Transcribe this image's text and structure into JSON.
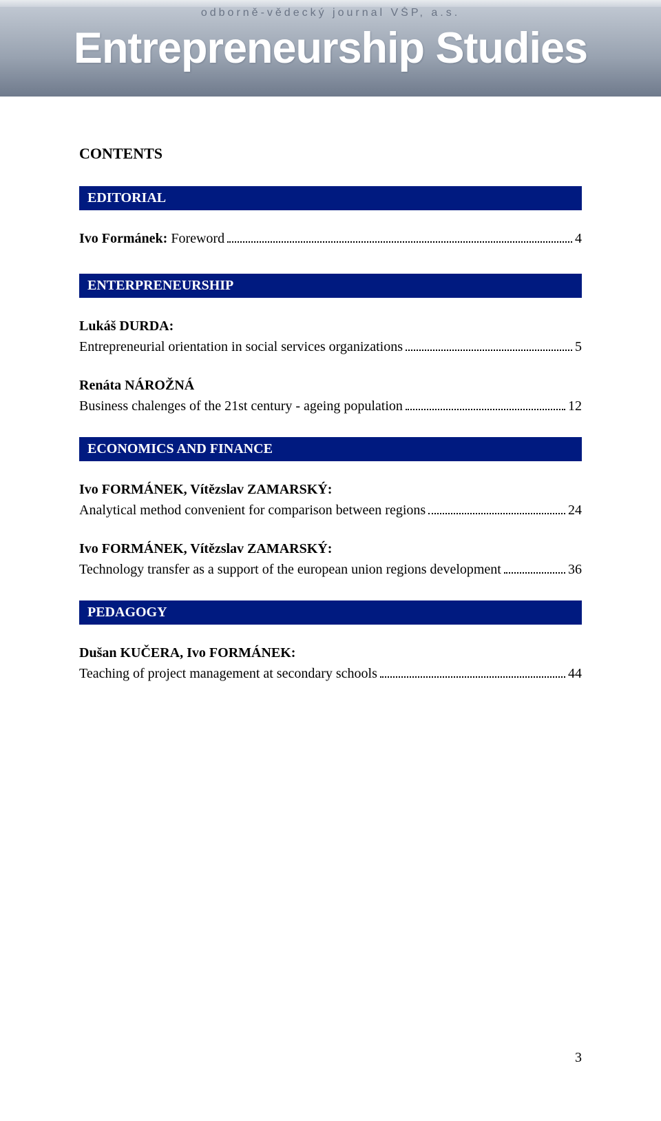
{
  "banner": {
    "subtitle": "odborně-vědecký journal VŠP, a.s.",
    "title": "Entrepreneurship Studies",
    "bg_gradient_top": "#c5ccd6",
    "bg_gradient_mid": "#98a2b0",
    "bg_gradient_bottom": "#6f7a8c",
    "subtitle_color": "#6a7485",
    "title_color": "#ffffff"
  },
  "contents_heading": "CONTENTS",
  "section_bar_bg": "#001a80",
  "section_bar_fg": "#ffffff",
  "sections": [
    {
      "heading": "EDITORIAL",
      "entries": [
        {
          "author": "Ivo Formánek:",
          "title": "Foreword",
          "page": "4",
          "inline": true
        }
      ]
    },
    {
      "heading": "ENTERPRENEURSHIP",
      "entries": [
        {
          "author": "Lukáš DURDA:",
          "title": "Entrepreneurial orientation in social services organizations",
          "page": "5"
        },
        {
          "author": "Renáta NÁROŽNÁ",
          "title": "Business chalenges of the 21st century - ageing population",
          "page": "12"
        }
      ]
    },
    {
      "heading": "ECONOMICS AND FINANCE",
      "entries": [
        {
          "author": "Ivo FORMÁNEK, Vítězslav ZAMARSKÝ:",
          "title": "Analytical method convenient for comparison between regions",
          "page": "24"
        },
        {
          "author": "Ivo FORMÁNEK, Vítězslav ZAMARSKÝ:",
          "title": "Technology transfer as a support of the european union regions development",
          "page": "36"
        }
      ]
    },
    {
      "heading": "PEDAGOGY",
      "entries": [
        {
          "author": "Dušan KUČERA, Ivo FORMÁNEK:",
          "title": "Teaching of project management at secondary schools",
          "page": "44"
        }
      ]
    }
  ],
  "page_number": "3"
}
